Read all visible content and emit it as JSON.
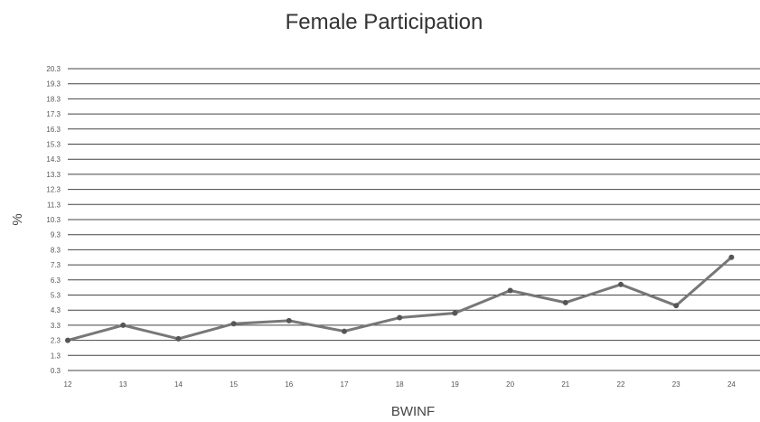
{
  "chart_data": {
    "type": "line",
    "title": "Female Participation",
    "xlabel": "BWINF",
    "ylabel": "%",
    "categories": [
      "12",
      "13",
      "14",
      "15",
      "16",
      "17",
      "18",
      "19",
      "20",
      "21",
      "22",
      "23",
      "24"
    ],
    "y_ticks": [
      "0.3",
      "1.3",
      "2.3",
      "3.3",
      "4.3",
      "5.3",
      "6.3",
      "7.3",
      "8.3",
      "9.3",
      "10.3",
      "11.3",
      "12.3",
      "13.3",
      "14.3",
      "15.3",
      "16.3",
      "17.3",
      "18.3",
      "19.3",
      "20.3"
    ],
    "ylim": [
      0.3,
      20.3
    ],
    "grid": true,
    "series": [
      {
        "values": [
          2.3,
          3.3,
          2.4,
          3.4,
          3.6,
          2.9,
          3.8,
          4.1,
          5.6,
          4.8,
          6.0,
          4.6,
          7.8
        ]
      }
    ],
    "colors": {
      "line": "#777777",
      "grid": "#444444",
      "point": "#555555"
    }
  }
}
